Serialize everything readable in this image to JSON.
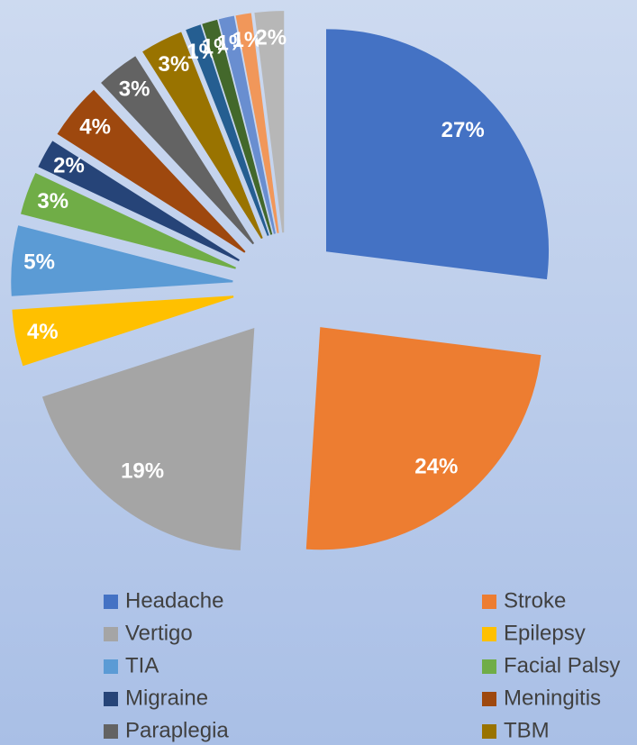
{
  "chart_data": {
    "type": "pie",
    "categories": [
      "Headache",
      "Stroke",
      "Vertigo",
      "Epilepsy",
      "TIA",
      "Facial Palsy",
      "Migraine",
      "Meningitis",
      "Paraplegia",
      "TBM",
      null,
      null,
      null,
      null,
      null
    ],
    "values": [
      27,
      24,
      19,
      4,
      5,
      3,
      2,
      4,
      3,
      3,
      1,
      1,
      1,
      1,
      2
    ],
    "value_labels": [
      "27%",
      "24%",
      "19%",
      "4%",
      "5%",
      "3%",
      "2%",
      "4%",
      "3%",
      "3%",
      "1%",
      "1%",
      "1%",
      "1%",
      "2%"
    ],
    "colors": [
      "#4472c4",
      "#ed7d31",
      "#a5a5a5",
      "#ffc000",
      "#5b9bd5",
      "#70ad47",
      "#264478",
      "#9e480e",
      "#636363",
      "#997300",
      "#255e91",
      "#43682b",
      "#698ed0",
      "#f1975a",
      "#b7b7b7"
    ],
    "legend": "bottom"
  }
}
